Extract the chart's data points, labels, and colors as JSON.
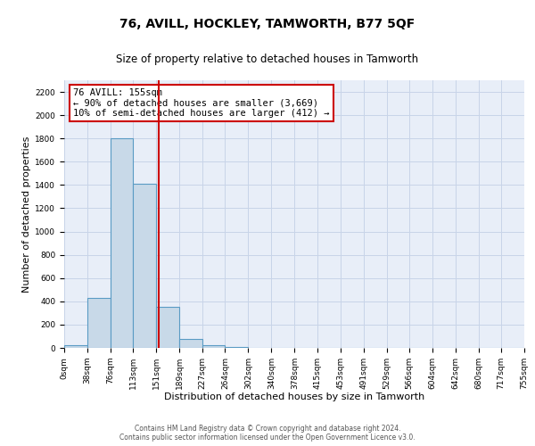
{
  "title": "76, AVILL, HOCKLEY, TAMWORTH, B77 5QF",
  "subtitle": "Size of property relative to detached houses in Tamworth",
  "xlabel": "Distribution of detached houses by size in Tamworth",
  "ylabel": "Number of detached properties",
  "bar_edges": [
    0,
    38,
    76,
    113,
    151,
    189,
    227,
    264,
    302,
    340,
    378,
    415,
    453,
    491,
    529,
    566,
    604,
    642,
    680,
    717,
    755
  ],
  "bar_heights": [
    20,
    430,
    1800,
    1410,
    350,
    75,
    25,
    5,
    0,
    0,
    0,
    0,
    0,
    0,
    0,
    0,
    0,
    0,
    0,
    0
  ],
  "bar_color": "#c8d9e8",
  "bar_edge_color": "#5a9bc4",
  "grid_color": "#c8d4e8",
  "background_color": "#e8eef8",
  "vline_x": 155,
  "vline_color": "#cc0000",
  "annotation_title": "76 AVILL: 155sqm",
  "annotation_line1": "← 90% of detached houses are smaller (3,669)",
  "annotation_line2": "10% of semi-detached houses are larger (412) →",
  "ylim": [
    0,
    2300
  ],
  "yticks": [
    0,
    200,
    400,
    600,
    800,
    1000,
    1200,
    1400,
    1600,
    1800,
    2000,
    2200
  ],
  "tick_labels": [
    "0sqm",
    "38sqm",
    "76sqm",
    "113sqm",
    "151sqm",
    "189sqm",
    "227sqm",
    "264sqm",
    "302sqm",
    "340sqm",
    "378sqm",
    "415sqm",
    "453sqm",
    "491sqm",
    "529sqm",
    "566sqm",
    "604sqm",
    "642sqm",
    "680sqm",
    "717sqm",
    "755sqm"
  ],
  "footer1": "Contains HM Land Registry data © Crown copyright and database right 2024.",
  "footer2": "Contains public sector information licensed under the Open Government Licence v3.0.",
  "title_fontsize": 10,
  "subtitle_fontsize": 8.5,
  "axis_label_fontsize": 8,
  "tick_fontsize": 6.5,
  "annotation_fontsize": 7.5,
  "footer_fontsize": 5.5
}
